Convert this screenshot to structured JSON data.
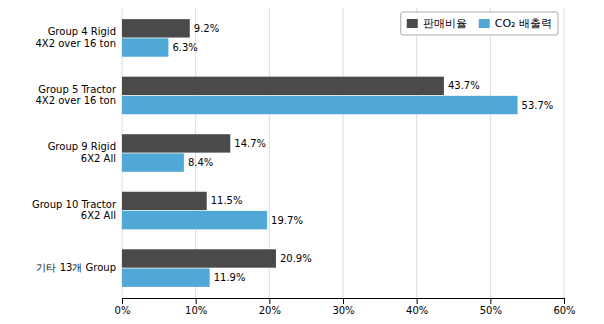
{
  "chart_data": {
    "type": "bar",
    "orientation": "horizontal",
    "categories": [
      "Group 4 Rigid\n4X2 over 16 ton",
      "Group 5 Tractor\n4X2 over 16 ton",
      "Group 9 Rigid\n6X2 All",
      "Group 10 Tractor\n6X2 All",
      "기타 13개 Group"
    ],
    "series": [
      {
        "name": "판매비율",
        "color": "#4a4a4a",
        "values": [
          9.2,
          43.7,
          14.7,
          11.5,
          20.9
        ],
        "value_labels": [
          "9.2%",
          "43.7%",
          "14.7%",
          "11.5%",
          "20.9%"
        ]
      },
      {
        "name": "CO₂ 배출력",
        "color": "#4fa8d5",
        "values": [
          6.3,
          53.7,
          8.4,
          19.7,
          11.9
        ],
        "value_labels": [
          "6.3%",
          "53.7%",
          "8.4%",
          "19.7%",
          "11.9%"
        ]
      }
    ],
    "xlim": [
      0,
      60
    ],
    "xticks": [
      {
        "value": 0,
        "label": "0%"
      },
      {
        "value": 10,
        "label": "10%"
      },
      {
        "value": 20,
        "label": "20%"
      },
      {
        "value": 30,
        "label": "30%"
      },
      {
        "value": 40,
        "label": "40%"
      },
      {
        "value": 50,
        "label": "50%"
      },
      {
        "value": 60,
        "label": "60%"
      }
    ],
    "grid": true,
    "legend": "upper right",
    "data_labels": true
  }
}
